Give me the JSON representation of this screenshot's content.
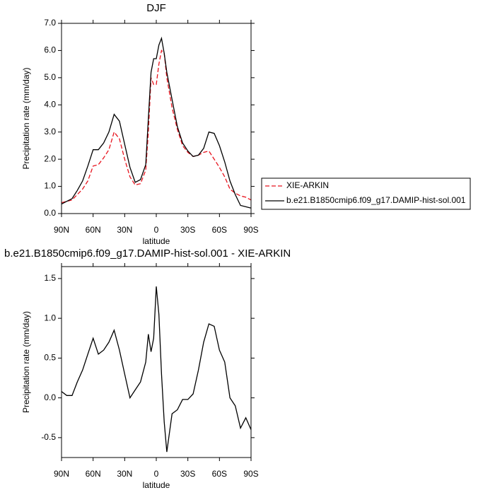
{
  "chart_data": [
    {
      "type": "line",
      "title": "DJF",
      "xlabel": "latitude",
      "ylabel": "Precipitation rate (mm/day)",
      "x": [
        90,
        85,
        80,
        75,
        70,
        65,
        60,
        55,
        50,
        45,
        40,
        35,
        30,
        25,
        20,
        15,
        10,
        7.5,
        5,
        2.5,
        0,
        -2.5,
        -5,
        -7.5,
        -10,
        -15,
        -20,
        -25,
        -30,
        -35,
        -40,
        -45,
        -50,
        -55,
        -60,
        -65,
        -70,
        -75,
        -80,
        -85,
        -90
      ],
      "xlim": [
        90,
        -90
      ],
      "xticks": [
        {
          "value": 90,
          "label": "90N"
        },
        {
          "value": 60,
          "label": "60N"
        },
        {
          "value": 30,
          "label": "30N"
        },
        0,
        {
          "value": -30,
          "label": "30S"
        },
        {
          "value": -60,
          "label": "60S"
        },
        {
          "value": -90,
          "label": "90S"
        }
      ],
      "ylim": [
        0,
        7
      ],
      "yticks": [
        {
          "value": 0,
          "label": "0.0"
        },
        {
          "value": 1,
          "label": "1.0"
        },
        {
          "value": 2,
          "label": "2.0"
        },
        {
          "value": 3,
          "label": "3.0"
        },
        {
          "value": 4,
          "label": "4.0"
        },
        {
          "value": 5,
          "label": "5.0"
        },
        {
          "value": 6,
          "label": "6.0"
        },
        {
          "value": 7,
          "label": "7.0"
        }
      ],
      "legend": "right",
      "series": [
        {
          "name": "XIE-ARKIN",
          "color": "#e8141e",
          "dash": true,
          "values": [
            0.4,
            0.45,
            0.5,
            0.7,
            0.9,
            1.2,
            1.75,
            1.8,
            2.05,
            2.35,
            3.0,
            2.75,
            2.0,
            1.35,
            1.05,
            1.1,
            1.6,
            3.0,
            5.0,
            4.75,
            4.75,
            5.5,
            6.0,
            5.9,
            5.0,
            3.9,
            3.1,
            2.5,
            2.25,
            2.1,
            2.15,
            2.25,
            2.3,
            2.0,
            1.7,
            1.35,
            0.9,
            0.75,
            0.65,
            0.6,
            0.5
          ]
        },
        {
          "name": "b.e21.B1850cmip6.f09_g17.DAMIP-hist-sol.001",
          "color": "#000000",
          "dash": false,
          "values": [
            0.35,
            0.45,
            0.55,
            0.85,
            1.2,
            1.75,
            2.35,
            2.35,
            2.6,
            3.0,
            3.65,
            3.4,
            2.55,
            1.7,
            1.15,
            1.25,
            1.8,
            3.5,
            5.2,
            5.7,
            5.7,
            6.2,
            6.45,
            5.9,
            5.2,
            4.2,
            3.2,
            2.6,
            2.3,
            2.1,
            2.15,
            2.4,
            3.0,
            2.95,
            2.5,
            1.9,
            1.2,
            0.7,
            0.3,
            0.25,
            0.2
          ]
        }
      ]
    },
    {
      "type": "line",
      "title": "b.e21.B1850cmip6.f09_g17.DAMIP-hist-sol.001 - XIE-ARKIN",
      "xlabel": "latitude",
      "ylabel": "Precipitation rate (mm/day)",
      "x": [
        90,
        85,
        80,
        75,
        70,
        65,
        60,
        55,
        50,
        45,
        40,
        35,
        30,
        25,
        20,
        15,
        10,
        7.5,
        5,
        2.5,
        0,
        -2.5,
        -5,
        -7.5,
        -10,
        -15,
        -20,
        -25,
        -30,
        -35,
        -40,
        -45,
        -50,
        -55,
        -60,
        -65,
        -70,
        -75,
        -80,
        -85,
        -90
      ],
      "xlim": [
        90,
        -90
      ],
      "xticks": [
        {
          "value": 90,
          "label": "90N"
        },
        {
          "value": 60,
          "label": "60N"
        },
        {
          "value": 30,
          "label": "30N"
        },
        0,
        {
          "value": -30,
          "label": "30S"
        },
        {
          "value": -60,
          "label": "60S"
        },
        {
          "value": -90,
          "label": "90S"
        }
      ],
      "ylim": [
        -0.75,
        1.65
      ],
      "yticks": [
        -0.5,
        {
          "value": 0,
          "label": "0.0"
        },
        0.5,
        {
          "value": 1,
          "label": "1.0"
        },
        1.5
      ],
      "series": [
        {
          "color": "#000000",
          "dash": false,
          "values": [
            0.08,
            0.03,
            0.03,
            0.2,
            0.35,
            0.55,
            0.75,
            0.55,
            0.6,
            0.7,
            0.85,
            0.6,
            0.3,
            0.0,
            0.1,
            0.2,
            0.45,
            0.8,
            0.58,
            0.75,
            1.4,
            1.05,
            0.3,
            -0.3,
            -0.68,
            -0.2,
            -0.15,
            -0.02,
            -0.02,
            0.05,
            0.35,
            0.7,
            0.93,
            0.9,
            0.6,
            0.45,
            0.0,
            -0.1,
            -0.38,
            -0.25,
            -0.4
          ]
        }
      ]
    }
  ]
}
